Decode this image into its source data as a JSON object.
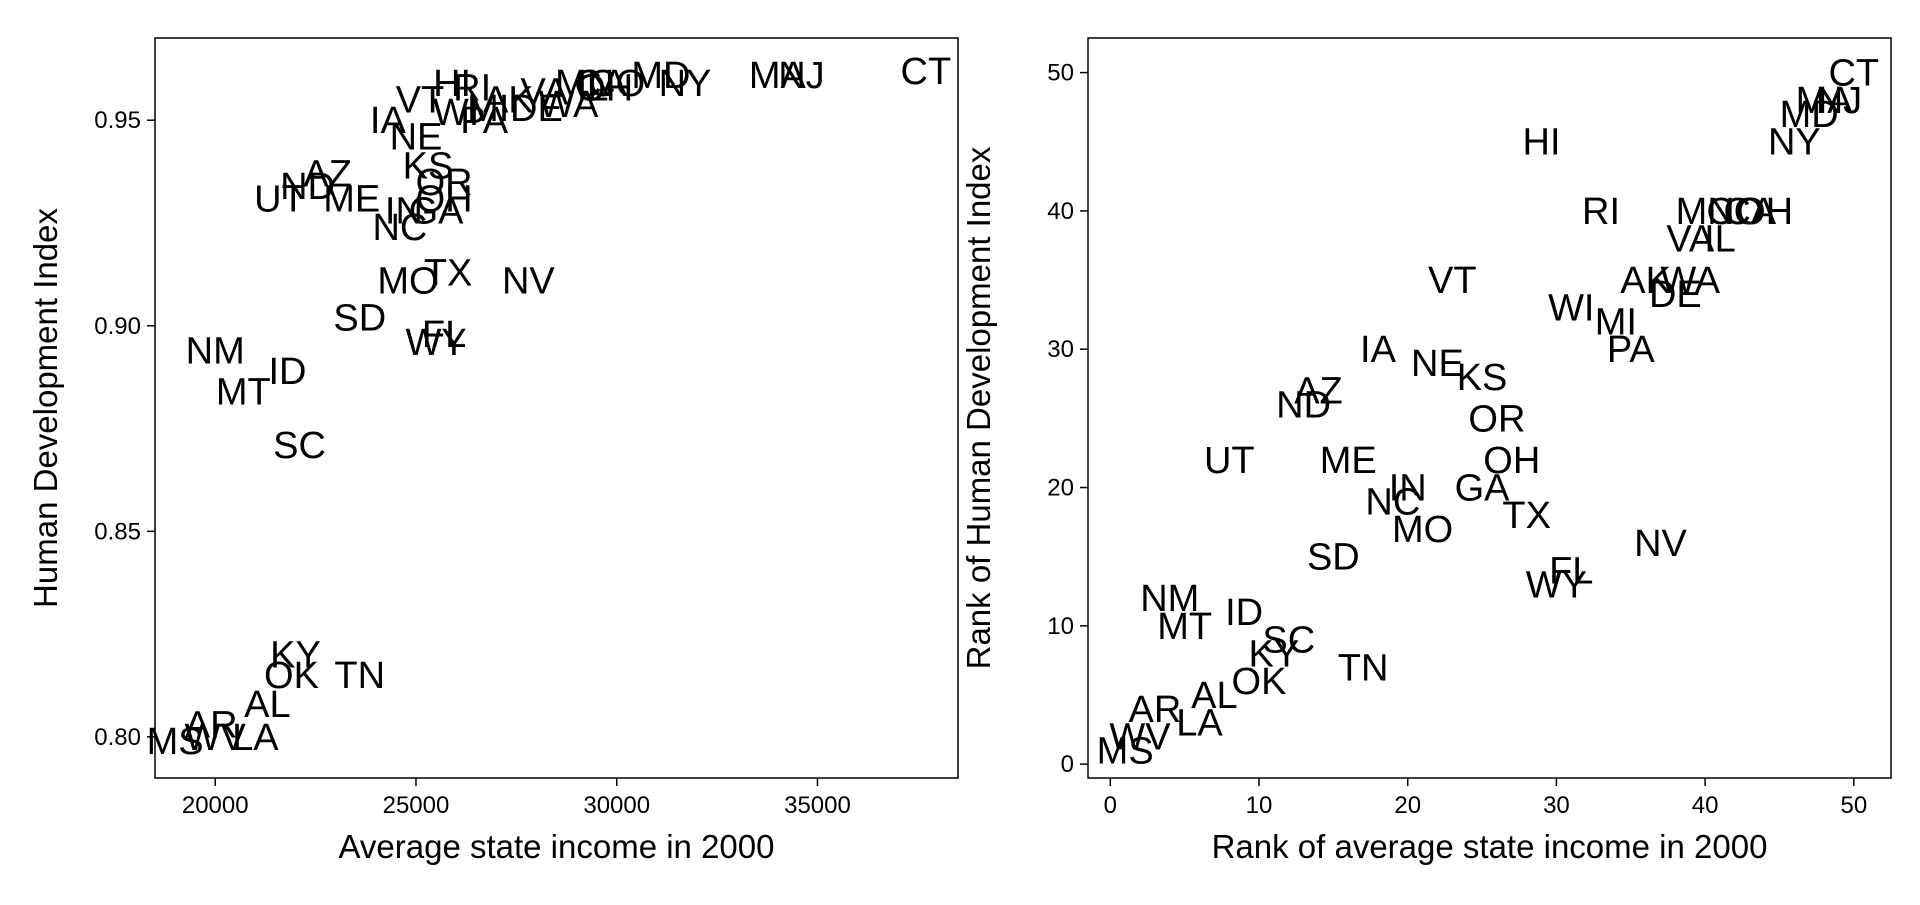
{
  "chart_data": [
    {
      "type": "scatter",
      "title": "",
      "xlabel": "Average state income in 2000",
      "ylabel": "Human Development Index",
      "xlim": [
        18500,
        38500
      ],
      "ylim": [
        0.79,
        0.97
      ],
      "xticks": [
        20000,
        25000,
        30000,
        35000
      ],
      "xtick_labels": [
        "20000",
        "25000",
        "30000",
        "35000"
      ],
      "yticks": [
        0.8,
        0.85,
        0.9,
        0.95
      ],
      "ytick_labels": [
        "0.80",
        "0.85",
        "0.90",
        "0.95"
      ],
      "grid": false,
      "legend": "none",
      "points": [
        {
          "label": "CT",
          "x": 37700,
          "y": 0.962
        },
        {
          "label": "NJ",
          "x": 34600,
          "y": 0.961
        },
        {
          "label": "MA",
          "x": 34000,
          "y": 0.961
        },
        {
          "label": "NY",
          "x": 31700,
          "y": 0.959
        },
        {
          "label": "MD",
          "x": 31100,
          "y": 0.961
        },
        {
          "label": "CO",
          "x": 30000,
          "y": 0.959
        },
        {
          "label": "CA",
          "x": 29600,
          "y": 0.959
        },
        {
          "label": "IL",
          "x": 29400,
          "y": 0.958
        },
        {
          "label": "OH",
          "x": 29700,
          "y": 0.958
        },
        {
          "label": "MN",
          "x": 29200,
          "y": 0.959
        },
        {
          "label": "VA",
          "x": 28200,
          "y": 0.957
        },
        {
          "label": "WA",
          "x": 28800,
          "y": 0.954
        },
        {
          "label": "DE",
          "x": 28000,
          "y": 0.953
        },
        {
          "label": "AK",
          "x": 27300,
          "y": 0.955
        },
        {
          "label": "MI",
          "x": 26800,
          "y": 0.953
        },
        {
          "label": "PA",
          "x": 26700,
          "y": 0.95
        },
        {
          "label": "WI",
          "x": 26000,
          "y": 0.952
        },
        {
          "label": "RI",
          "x": 26400,
          "y": 0.958
        },
        {
          "label": "HI",
          "x": 25900,
          "y": 0.959
        },
        {
          "label": "VT",
          "x": 25100,
          "y": 0.955
        },
        {
          "label": "IA",
          "x": 24300,
          "y": 0.95
        },
        {
          "label": "NE",
          "x": 25000,
          "y": 0.946
        },
        {
          "label": "KS",
          "x": 25300,
          "y": 0.939
        },
        {
          "label": "AZ",
          "x": 22800,
          "y": 0.937
        },
        {
          "label": "ND",
          "x": 22300,
          "y": 0.934
        },
        {
          "label": "OR",
          "x": 25700,
          "y": 0.935
        },
        {
          "label": "OH",
          "x": 25700,
          "y": 0.931
        },
        {
          "label": "UT",
          "x": 21600,
          "y": 0.931
        },
        {
          "label": "ME",
          "x": 23400,
          "y": 0.931
        },
        {
          "label": "IN",
          "x": 24700,
          "y": 0.928
        },
        {
          "label": "GA",
          "x": 25500,
          "y": 0.928
        },
        {
          "label": "NC",
          "x": 24600,
          "y": 0.924
        },
        {
          "label": "TX",
          "x": 25800,
          "y": 0.913
        },
        {
          "label": "MO",
          "x": 24800,
          "y": 0.911
        },
        {
          "label": "NV",
          "x": 27800,
          "y": 0.911
        },
        {
          "label": "SD",
          "x": 23600,
          "y": 0.902
        },
        {
          "label": "FL",
          "x": 25700,
          "y": 0.898
        },
        {
          "label": "WY",
          "x": 25500,
          "y": 0.896
        },
        {
          "label": "NM",
          "x": 20000,
          "y": 0.894
        },
        {
          "label": "ID",
          "x": 21800,
          "y": 0.889
        },
        {
          "label": "MT",
          "x": 20700,
          "y": 0.884
        },
        {
          "label": "SC",
          "x": 22100,
          "y": 0.871
        },
        {
          "label": "KY",
          "x": 22000,
          "y": 0.82
        },
        {
          "label": "OK",
          "x": 21900,
          "y": 0.815
        },
        {
          "label": "TN",
          "x": 23600,
          "y": 0.815
        },
        {
          "label": "AL",
          "x": 21300,
          "y": 0.808
        },
        {
          "label": "AR",
          "x": 19900,
          "y": 0.803
        },
        {
          "label": "WV",
          "x": 20000,
          "y": 0.8
        },
        {
          "label": "LA",
          "x": 21000,
          "y": 0.8
        },
        {
          "label": "MS",
          "x": 19000,
          "y": 0.799
        }
      ]
    },
    {
      "type": "scatter",
      "title": "",
      "xlabel": "Rank of average state income in 2000",
      "ylabel": "Rank of Human Development Index",
      "xlim": [
        -1.5,
        52.5
      ],
      "ylim": [
        -1,
        52.5
      ],
      "xticks": [
        0,
        10,
        20,
        30,
        40,
        50
      ],
      "xtick_labels": [
        "0",
        "10",
        "20",
        "30",
        "40",
        "50"
      ],
      "yticks": [
        0,
        10,
        20,
        30,
        40,
        50
      ],
      "ytick_labels": [
        "0",
        "10",
        "20",
        "30",
        "40",
        "50"
      ],
      "grid": false,
      "legend": "none",
      "points": [
        {
          "label": "CT",
          "x": 50,
          "y": 50
        },
        {
          "label": "NJ",
          "x": 49,
          "y": 48
        },
        {
          "label": "MA",
          "x": 48,
          "y": 48
        },
        {
          "label": "MD",
          "x": 47,
          "y": 47
        },
        {
          "label": "NY",
          "x": 46,
          "y": 45
        },
        {
          "label": "HI",
          "x": 29,
          "y": 45
        },
        {
          "label": "RI",
          "x": 33,
          "y": 40
        },
        {
          "label": "MN",
          "x": 40,
          "y": 40
        },
        {
          "label": "CO",
          "x": 42,
          "y": 40
        },
        {
          "label": "CA",
          "x": 43,
          "y": 40
        },
        {
          "label": "OH",
          "x": 44,
          "y": 40
        },
        {
          "label": "VA",
          "x": 39,
          "y": 38
        },
        {
          "label": "IL",
          "x": 41,
          "y": 38
        },
        {
          "label": "VT",
          "x": 23,
          "y": 35
        },
        {
          "label": "AK",
          "x": 36,
          "y": 35
        },
        {
          "label": "WA",
          "x": 39,
          "y": 35
        },
        {
          "label": "DE",
          "x": 38,
          "y": 34
        },
        {
          "label": "WI",
          "x": 31,
          "y": 33
        },
        {
          "label": "MI",
          "x": 34,
          "y": 32
        },
        {
          "label": "PA",
          "x": 35,
          "y": 30
        },
        {
          "label": "IA",
          "x": 18,
          "y": 30
        },
        {
          "label": "NE",
          "x": 22,
          "y": 29
        },
        {
          "label": "KS",
          "x": 25,
          "y": 28
        },
        {
          "label": "AZ",
          "x": 14,
          "y": 27
        },
        {
          "label": "ND",
          "x": 13,
          "y": 26
        },
        {
          "label": "OR",
          "x": 26,
          "y": 25
        },
        {
          "label": "UT",
          "x": 8,
          "y": 22
        },
        {
          "label": "ME",
          "x": 16,
          "y": 22
        },
        {
          "label": "OH",
          "x": 27,
          "y": 22
        },
        {
          "label": "IN",
          "x": 20,
          "y": 20
        },
        {
          "label": "GA",
          "x": 25,
          "y": 20
        },
        {
          "label": "NC",
          "x": 19,
          "y": 19
        },
        {
          "label": "TX",
          "x": 28,
          "y": 18
        },
        {
          "label": "MO",
          "x": 21,
          "y": 17
        },
        {
          "label": "NV",
          "x": 37,
          "y": 16
        },
        {
          "label": "SD",
          "x": 15,
          "y": 15
        },
        {
          "label": "FL",
          "x": 31,
          "y": 14
        },
        {
          "label": "WY",
          "x": 30,
          "y": 13
        },
        {
          "label": "NM",
          "x": 4,
          "y": 12
        },
        {
          "label": "ID",
          "x": 9,
          "y": 11
        },
        {
          "label": "MT",
          "x": 5,
          "y": 10
        },
        {
          "label": "SC",
          "x": 12,
          "y": 9
        },
        {
          "label": "KY",
          "x": 11,
          "y": 8
        },
        {
          "label": "TN",
          "x": 17,
          "y": 7
        },
        {
          "label": "OK",
          "x": 10,
          "y": 6
        },
        {
          "label": "AL",
          "x": 7,
          "y": 5
        },
        {
          "label": "AR",
          "x": 3,
          "y": 4
        },
        {
          "label": "LA",
          "x": 6,
          "y": 3
        },
        {
          "label": "WV",
          "x": 2,
          "y": 2
        },
        {
          "label": "MS",
          "x": 1,
          "y": 1
        }
      ]
    }
  ]
}
